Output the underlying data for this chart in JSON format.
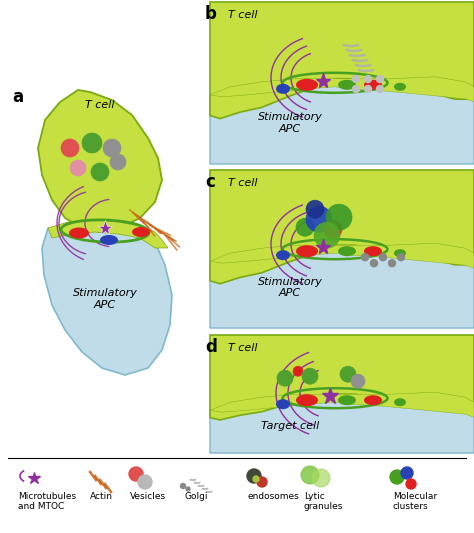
{
  "bg_color": "#ffffff",
  "green_lt": "#c5e040",
  "green_dk": "#7aaa10",
  "green_mid": "#a8d020",
  "apc_blue": "#c0dce8",
  "apc_blue_edge": "#80b8cc",
  "red_c": "#e02020",
  "blue_c": "#2840b8",
  "green_c": "#48a020",
  "purple_c": "#9030a0",
  "actin_c": "#cc6010",
  "v_red": "#e05050",
  "v_green": "#50a030",
  "v_gray": "#909090",
  "v_pink": "#e090a0",
  "v_ltgray": "#c0c0c0",
  "golgi_c": "#a0a0a0",
  "figsize": [
    4.74,
    5.33
  ],
  "dpi": 100,
  "label_a": "a",
  "label_b": "b",
  "label_c": "c",
  "label_d": "d",
  "tcell_label": "T cell",
  "stim_apc": "Stimulatory\nAPC",
  "target_cell": "Target cell",
  "legend_items": [
    "Microtubules\nand MTOC",
    "Actin",
    "Vesicles",
    "Golgi",
    "endosomes",
    "Lytic\ngranules",
    "Molecular\nclusters"
  ]
}
